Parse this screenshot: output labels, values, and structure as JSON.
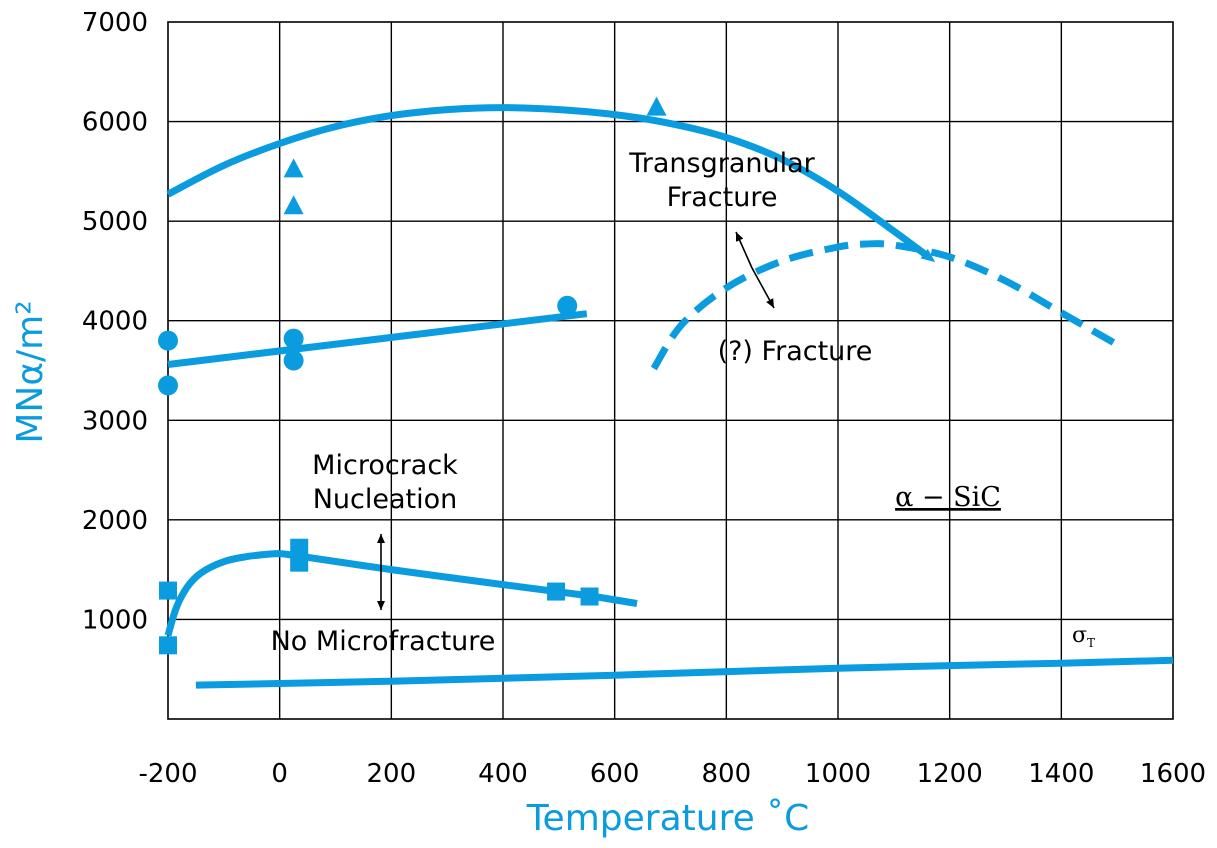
{
  "colors": {
    "series": "#0a9cde",
    "grid": "#000000",
    "text": "#000000"
  },
  "chart_data": {
    "type": "line",
    "xlabel": "Temperature ˚C",
    "ylabel": "MNα/m²",
    "xlim": [
      -200,
      1600
    ],
    "ylim": [
      0,
      7000
    ],
    "x_ticks": [
      -200,
      0,
      200,
      400,
      600,
      800,
      1000,
      1200,
      1400,
      1600
    ],
    "y_ticks": [
      1000,
      2000,
      3000,
      4000,
      5000,
      6000,
      7000
    ],
    "x_tick_labels": [
      "-200",
      "0",
      "200",
      "400",
      "600",
      "800",
      "1000",
      "1200",
      "1400",
      "1600"
    ],
    "y_tick_labels": [
      "1000",
      "2000",
      "3000",
      "4000",
      "5000",
      "6000",
      "7000"
    ],
    "grid": true,
    "series": [
      {
        "id": "transgranular",
        "style": "solid",
        "arrow_end": true,
        "marker": "triangle",
        "curve": [
          [
            -200,
            5270
          ],
          [
            -100,
            5560
          ],
          [
            0,
            5780
          ],
          [
            100,
            5950
          ],
          [
            200,
            6060
          ],
          [
            300,
            6120
          ],
          [
            400,
            6140
          ],
          [
            500,
            6120
          ],
          [
            600,
            6070
          ],
          [
            700,
            5980
          ],
          [
            800,
            5840
          ],
          [
            900,
            5620
          ],
          [
            1000,
            5300
          ],
          [
            1100,
            4900
          ],
          [
            1160,
            4650
          ]
        ],
        "points": [
          [
            25,
            5520
          ],
          [
            25,
            5150
          ],
          [
            675,
            6140
          ]
        ]
      },
      {
        "id": "fracture",
        "style": "dashed",
        "curve": [
          [
            670,
            3520
          ],
          [
            720,
            3960
          ],
          [
            800,
            4330
          ],
          [
            900,
            4600
          ],
          [
            1000,
            4740
          ],
          [
            1050,
            4770
          ],
          [
            1100,
            4760
          ],
          [
            1200,
            4640
          ],
          [
            1300,
            4400
          ],
          [
            1400,
            4080
          ],
          [
            1500,
            3760
          ]
        ]
      },
      {
        "id": "alpha_upper",
        "style": "solid",
        "marker": "circle",
        "curve": [
          [
            -200,
            3560
          ],
          [
            550,
            4070
          ]
        ],
        "points": [
          [
            -200,
            3800
          ],
          [
            -200,
            3350
          ],
          [
            25,
            3820
          ],
          [
            25,
            3600
          ],
          [
            515,
            4150
          ]
        ]
      },
      {
        "id": "microcrack",
        "style": "solid",
        "marker": "square",
        "curve": [
          [
            -200,
            840
          ],
          [
            -185,
            1120
          ],
          [
            -165,
            1330
          ],
          [
            -140,
            1470
          ],
          [
            -100,
            1580
          ],
          [
            -60,
            1630
          ],
          [
            -20,
            1655
          ],
          [
            0,
            1660
          ],
          [
            30,
            1640
          ],
          [
            200,
            1500
          ],
          [
            400,
            1350
          ],
          [
            550,
            1240
          ],
          [
            640,
            1160
          ]
        ],
        "points": [
          [
            -200,
            1290
          ],
          [
            -200,
            740
          ],
          [
            35,
            1720
          ],
          [
            35,
            1570
          ],
          [
            495,
            1280
          ],
          [
            555,
            1230
          ]
        ]
      },
      {
        "id": "sigma_t",
        "style": "solid",
        "curve": [
          [
            -150,
            340
          ],
          [
            200,
            380
          ],
          [
            600,
            440
          ],
          [
            1000,
            510
          ],
          [
            1400,
            560
          ],
          [
            1600,
            590
          ]
        ]
      }
    ],
    "annotations": {
      "transgranular_1": "Transgranular",
      "transgranular_2": "Fracture",
      "fracture": "(?) Fracture",
      "microcrack_1": "Microcrack",
      "microcrack_2": "Nucleation",
      "no_micro": "No Microfracture",
      "alpha": "α − SiC",
      "sigma": "σ",
      "sigma_sub": "T"
    }
  }
}
